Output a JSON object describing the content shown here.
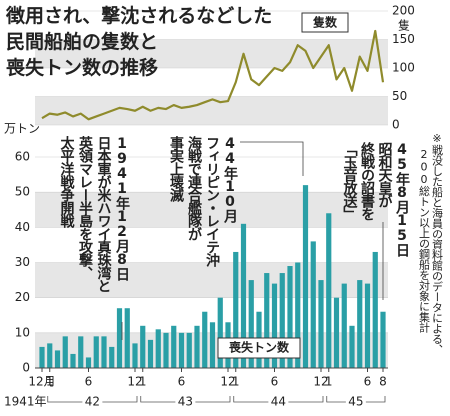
{
  "title": [
    "徴用され、撃沈されるなどした",
    "民間船舶の隻数と",
    "喪失トン数の推移"
  ],
  "note": [
    "※戦没した船と海員の資料館のデータによる、",
    "200総トン以上の鋼船を対象に集計"
  ],
  "annotations": [
    [
      "1941年12月8日",
      "日本軍が米ハワイ真珠湾と",
      "英領マレー半島を攻撃、",
      "太平洋戦争開戦"
    ],
    [
      "44年10月",
      "フィリピン・レイテ沖",
      "海戦で連合艦隊が",
      "事実上壊滅"
    ],
    [
      "45年8月15日",
      "昭和天皇が",
      "終戦の詔書を",
      "「玉音放送」"
    ]
  ],
  "chart_data": [
    {
      "type": "line",
      "name": "隻数",
      "y_unit": "隻",
      "color": "#8f8b2c",
      "values": [
        12,
        20,
        18,
        22,
        15,
        20,
        10,
        15,
        20,
        25,
        30,
        28,
        25,
        32,
        25,
        30,
        28,
        35,
        30,
        32,
        35,
        40,
        45,
        40,
        42,
        75,
        125,
        80,
        70,
        85,
        100,
        95,
        110,
        140,
        130,
        100,
        120,
        140,
        80,
        100,
        60,
        120,
        95,
        165,
        75
      ],
      "ylim": [
        0,
        200
      ],
      "yticks": [
        0,
        50,
        100,
        150,
        200
      ],
      "grid": true
    },
    {
      "type": "bar",
      "name": "喪失トン数",
      "y_unit": "万トン",
      "color": "#2a9fa6",
      "categories": [
        "12月",
        "1",
        null,
        null,
        null,
        null,
        "6",
        null,
        null,
        null,
        null,
        null,
        "12",
        "1",
        null,
        null,
        null,
        null,
        "6",
        null,
        null,
        null,
        null,
        null,
        "12",
        "1",
        null,
        null,
        null,
        null,
        "6",
        null,
        null,
        null,
        null,
        null,
        "12",
        "1",
        null,
        null,
        null,
        null,
        "6",
        null,
        "8"
      ],
      "x_groups": [
        "1941年",
        "42",
        "43",
        "44",
        "45"
      ],
      "values": [
        6,
        7,
        5,
        9,
        4,
        9,
        3,
        9,
        9,
        6,
        17,
        17,
        7,
        12,
        8,
        11,
        10,
        12,
        10,
        10,
        12,
        16,
        13,
        20,
        13,
        33,
        41,
        25,
        16,
        27,
        24,
        27,
        29,
        30,
        52,
        36,
        25,
        44,
        20,
        24,
        12,
        25,
        24,
        33,
        16
      ],
      "ylim": [
        0,
        60
      ],
      "yticks": [
        0,
        10,
        20,
        30,
        40,
        50,
        60
      ],
      "grid": true
    }
  ]
}
